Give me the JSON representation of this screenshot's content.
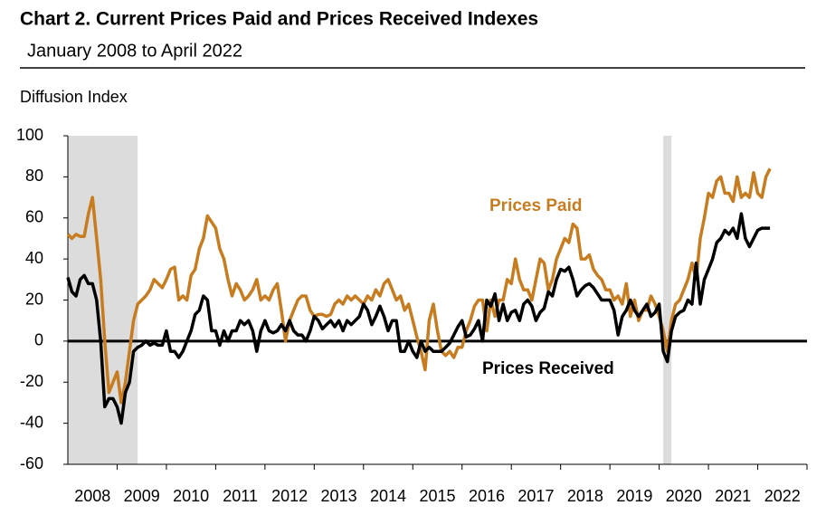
{
  "chart_data": {
    "type": "line",
    "title": "Chart 2. Current Prices Paid and Prices Received Indexes",
    "subtitle": "January 2008 to April 2022",
    "y_label": "Diffusion Index",
    "xlim": [
      2008,
      2023
    ],
    "xticks": [
      {
        "value": 2008.5,
        "label": "2008"
      },
      {
        "value": 2009.5,
        "label": "2009"
      },
      {
        "value": 2010.5,
        "label": "2010"
      },
      {
        "value": 2011.5,
        "label": "2011"
      },
      {
        "value": 2012.5,
        "label": "2012"
      },
      {
        "value": 2013.5,
        "label": "2013"
      },
      {
        "value": 2014.5,
        "label": "2014"
      },
      {
        "value": 2015.5,
        "label": "2015"
      },
      {
        "value": 2016.5,
        "label": "2016"
      },
      {
        "value": 2017.5,
        "label": "2017"
      },
      {
        "value": 2018.5,
        "label": "2018"
      },
      {
        "value": 2019.5,
        "label": "2019"
      },
      {
        "value": 2020.5,
        "label": "2020"
      },
      {
        "value": 2021.5,
        "label": "2021"
      },
      {
        "value": 2022.5,
        "label": "2022"
      }
    ],
    "ylim": [
      -60,
      100
    ],
    "yticks": [
      -60,
      -40,
      -20,
      0,
      20,
      40,
      60,
      80,
      100
    ],
    "recessions": [
      [
        2008,
        2009.417
      ],
      [
        2020.083,
        2020.25
      ]
    ],
    "x": [
      2008,
      2008.083,
      2008.167,
      2008.25,
      2008.333,
      2008.417,
      2008.5,
      2008.583,
      2008.667,
      2008.75,
      2008.833,
      2008.917,
      2009,
      2009.083,
      2009.167,
      2009.25,
      2009.333,
      2009.417,
      2009.5,
      2009.583,
      2009.667,
      2009.75,
      2009.833,
      2009.917,
      2010,
      2010.083,
      2010.167,
      2010.25,
      2010.333,
      2010.417,
      2010.5,
      2010.583,
      2010.667,
      2010.75,
      2010.833,
      2010.917,
      2011,
      2011.083,
      2011.167,
      2011.25,
      2011.333,
      2011.417,
      2011.5,
      2011.583,
      2011.667,
      2011.75,
      2011.833,
      2011.917,
      2012,
      2012.083,
      2012.167,
      2012.25,
      2012.333,
      2012.417,
      2012.5,
      2012.583,
      2012.667,
      2012.75,
      2012.833,
      2012.917,
      2013,
      2013.083,
      2013.167,
      2013.25,
      2013.333,
      2013.417,
      2013.5,
      2013.583,
      2013.667,
      2013.75,
      2013.833,
      2013.917,
      2014,
      2014.083,
      2014.167,
      2014.25,
      2014.333,
      2014.417,
      2014.5,
      2014.583,
      2014.667,
      2014.75,
      2014.833,
      2014.917,
      2015,
      2015.083,
      2015.167,
      2015.25,
      2015.333,
      2015.417,
      2015.5,
      2015.583,
      2015.667,
      2015.75,
      2015.833,
      2015.917,
      2016,
      2016.083,
      2016.167,
      2016.25,
      2016.333,
      2016.417,
      2016.5,
      2016.583,
      2016.667,
      2016.75,
      2016.833,
      2016.917,
      2017,
      2017.083,
      2017.167,
      2017.25,
      2017.333,
      2017.417,
      2017.5,
      2017.583,
      2017.667,
      2017.75,
      2017.833,
      2017.917,
      2018,
      2018.083,
      2018.167,
      2018.25,
      2018.333,
      2018.417,
      2018.5,
      2018.583,
      2018.667,
      2018.75,
      2018.833,
      2018.917,
      2019,
      2019.083,
      2019.167,
      2019.25,
      2019.333,
      2019.417,
      2019.5,
      2019.583,
      2019.667,
      2019.75,
      2019.833,
      2019.917,
      2020,
      2020.083,
      2020.167,
      2020.25,
      2020.333,
      2020.417,
      2020.5,
      2020.583,
      2020.667,
      2020.75,
      2020.833,
      2020.917,
      2021,
      2021.083,
      2021.167,
      2021.25,
      2021.333,
      2021.417,
      2021.5,
      2021.583,
      2021.667,
      2021.75,
      2021.833,
      2021.917,
      2022,
      2022.083,
      2022.167,
      2022.25
    ],
    "series": [
      {
        "name": "Prices Paid",
        "color": "#c77c1f",
        "values": [
          52,
          50,
          52,
          51,
          51,
          62,
          70,
          50,
          30,
          0,
          -25,
          -20,
          -15,
          -30,
          -20,
          -5,
          10,
          18,
          20,
          22,
          25,
          30,
          28,
          26,
          30,
          35,
          36,
          20,
          22,
          20,
          32,
          35,
          45,
          50,
          61,
          58,
          55,
          45,
          40,
          30,
          22,
          28,
          25,
          20,
          22,
          25,
          30,
          20,
          22,
          20,
          25,
          28,
          15,
          0,
          10,
          15,
          20,
          22,
          22,
          15,
          12,
          13,
          13,
          12,
          13,
          18,
          20,
          18,
          22,
          20,
          22,
          20,
          18,
          22,
          20,
          25,
          22,
          28,
          30,
          25,
          20,
          22,
          15,
          18,
          10,
          2,
          -5,
          -14,
          10,
          18,
          5,
          -5,
          -7,
          -5,
          -8,
          -3,
          -3,
          5,
          10,
          17,
          20,
          20,
          5,
          20,
          12,
          20,
          20,
          30,
          28,
          40,
          30,
          25,
          25,
          20,
          30,
          40,
          38,
          25,
          30,
          40,
          45,
          50,
          48,
          57,
          55,
          40,
          40,
          42,
          35,
          32,
          30,
          25,
          25,
          20,
          22,
          18,
          28,
          12,
          20,
          10,
          15,
          15,
          22,
          18,
          12,
          5,
          -5,
          10,
          18,
          20,
          25,
          30,
          38,
          30,
          50,
          60,
          72,
          70,
          78,
          80,
          72,
          72,
          68,
          80,
          70,
          72,
          70,
          82,
          72,
          70,
          80,
          84
        ]
      },
      {
        "name": "Prices Received",
        "color": "#000000",
        "values": [
          31,
          24,
          22,
          30,
          32,
          28,
          28,
          20,
          0,
          -32,
          -28,
          -28,
          -32,
          -40,
          -25,
          -20,
          -5,
          -3,
          -2,
          0,
          -2,
          -1,
          -2,
          -2,
          5,
          -5,
          -5,
          -8,
          -5,
          0,
          5,
          13,
          15,
          22,
          20,
          5,
          5,
          -2,
          5,
          0,
          5,
          5,
          10,
          8,
          10,
          5,
          -5,
          5,
          10,
          5,
          4,
          5,
          8,
          5,
          10,
          5,
          3,
          3,
          0,
          5,
          12,
          10,
          6,
          8,
          10,
          7,
          10,
          5,
          10,
          8,
          10,
          12,
          18,
          15,
          8,
          12,
          17,
          12,
          5,
          10,
          10,
          -5,
          -5,
          0,
          -5,
          -8,
          0,
          -5,
          -3,
          -5,
          -5,
          -5,
          -3,
          -1,
          3,
          7,
          10,
          2,
          3,
          6,
          10,
          0,
          20,
          17,
          23,
          10,
          18,
          10,
          14,
          15,
          10,
          18,
          20,
          17,
          10,
          14,
          16,
          24,
          22,
          30,
          35,
          34,
          36,
          30,
          22,
          25,
          27,
          28,
          26,
          23,
          20,
          20,
          20,
          15,
          3,
          12,
          15,
          20,
          15,
          12,
          15,
          18,
          12,
          14,
          18,
          -5,
          -10,
          5,
          12,
          14,
          15,
          20,
          18,
          38,
          18,
          30,
          35,
          40,
          48,
          50,
          54,
          52,
          55,
          50,
          62,
          50,
          46,
          50,
          54,
          55,
          55,
          55
        ]
      }
    ]
  }
}
